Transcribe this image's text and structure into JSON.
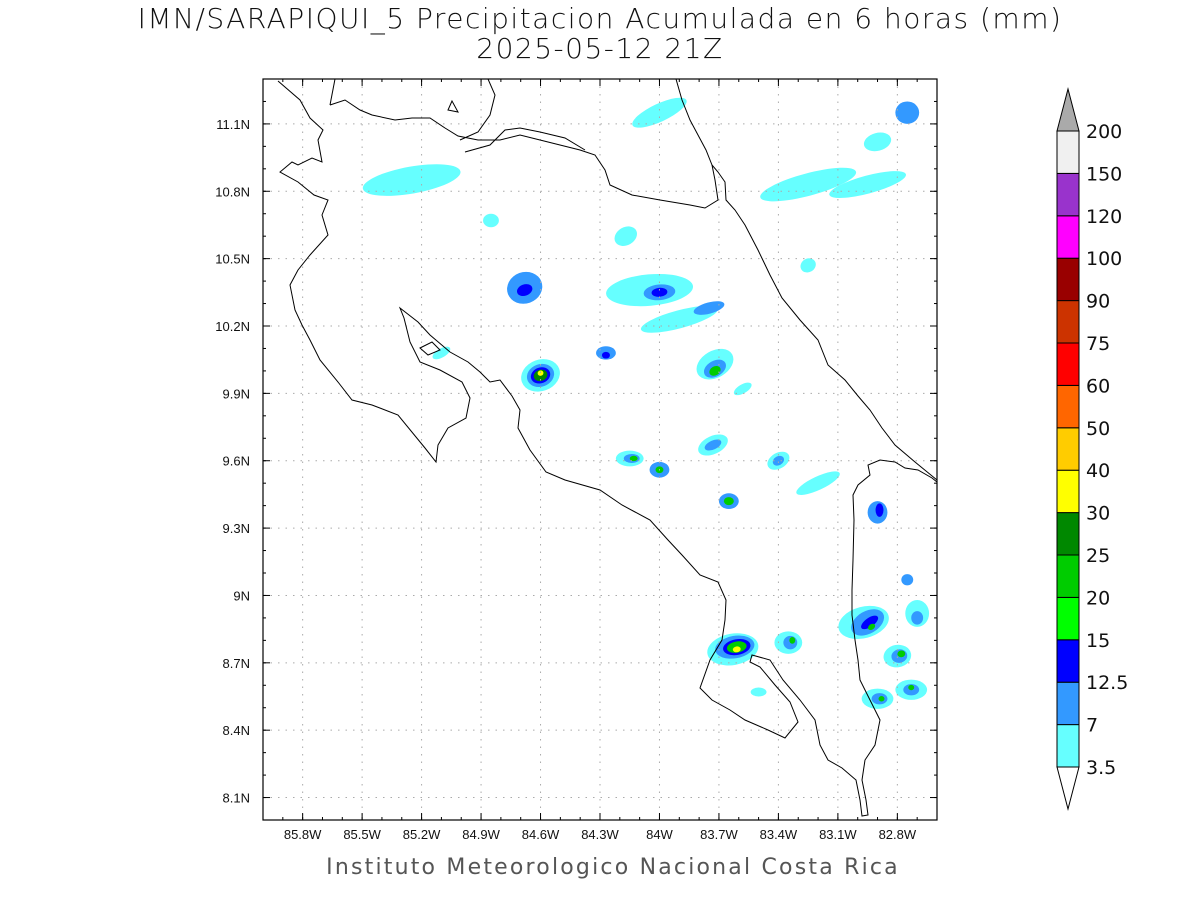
{
  "title_line1": "IMN/SARAPIQUI_5 Precipitacion Acumulada en 6 horas (mm)",
  "title_line2": "2025-05-12 21Z",
  "credit": "Instituto Meteorologico Nacional Costa Rica",
  "map": {
    "lon_min": -86.0,
    "lon_max": -82.6,
    "lat_min": 8.0,
    "lat_max": 11.3,
    "lon_ticks": [
      {
        "value": -85.8,
        "label": "85.8W"
      },
      {
        "value": -85.5,
        "label": "85.5W"
      },
      {
        "value": -85.2,
        "label": "85.2W"
      },
      {
        "value": -84.9,
        "label": "84.9W"
      },
      {
        "value": -84.6,
        "label": "84.6W"
      },
      {
        "value": -84.3,
        "label": "84.3W"
      },
      {
        "value": -84.0,
        "label": "84W"
      },
      {
        "value": -83.7,
        "label": "83.7W"
      },
      {
        "value": -83.4,
        "label": "83.4W"
      },
      {
        "value": -83.1,
        "label": "83.1W"
      },
      {
        "value": -82.8,
        "label": "82.8W"
      }
    ],
    "lat_ticks": [
      {
        "value": 8.1,
        "label": "8.1N"
      },
      {
        "value": 8.4,
        "label": "8.4N"
      },
      {
        "value": 8.7,
        "label": "8.7N"
      },
      {
        "value": 9.0,
        "label": "9N"
      },
      {
        "value": 9.3,
        "label": "9.3N"
      },
      {
        "value": 9.6,
        "label": "9.6N"
      },
      {
        "value": 9.9,
        "label": "9.9N"
      },
      {
        "value": 10.2,
        "label": "10.2N"
      },
      {
        "value": 10.5,
        "label": "10.5N"
      },
      {
        "value": 10.8,
        "label": "10.8N"
      },
      {
        "value": 11.1,
        "label": "11.1N"
      }
    ]
  },
  "colorbar": {
    "levels": [
      "3.5",
      "7",
      "12.5",
      "15",
      "20",
      "25",
      "30",
      "40",
      "50",
      "60",
      "75",
      "90",
      "100",
      "120",
      "150",
      "200"
    ],
    "colors": [
      "#ffffff",
      "#66ffff",
      "#3399ff",
      "#0000ff",
      "#00ff00",
      "#00cc00",
      "#008800",
      "#ffff00",
      "#ffcc00",
      "#ff6600",
      "#ff0000",
      "#cc3300",
      "#990000",
      "#ff00ff",
      "#9933cc",
      "#f0f0f0",
      "#aaaaaa"
    ]
  },
  "precip_cells": [
    {
      "lon": -85.25,
      "lat": 10.85,
      "rx": 0.25,
      "ry": 0.06,
      "rot": -10,
      "level": 1
    },
    {
      "lon": -84.85,
      "lat": 10.67,
      "rx": 0.04,
      "ry": 0.03,
      "rot": 0,
      "level": 1
    },
    {
      "lon": -84.0,
      "lat": 11.15,
      "rx": 0.15,
      "ry": 0.04,
      "rot": -25,
      "level": 1
    },
    {
      "lon": -83.25,
      "lat": 10.83,
      "rx": 0.25,
      "ry": 0.05,
      "rot": -15,
      "level": 1
    },
    {
      "lon": -82.95,
      "lat": 10.83,
      "rx": 0.2,
      "ry": 0.04,
      "rot": -15,
      "level": 1
    },
    {
      "lon": -82.75,
      "lat": 11.15,
      "rx": 0.06,
      "ry": 0.05,
      "rot": 0,
      "level": 2
    },
    {
      "lon": -82.9,
      "lat": 11.02,
      "rx": 0.07,
      "ry": 0.04,
      "rot": -15,
      "level": 1
    },
    {
      "lon": -84.17,
      "lat": 10.6,
      "rx": 0.06,
      "ry": 0.04,
      "rot": -30,
      "level": 1
    },
    {
      "lon": -83.25,
      "lat": 10.47,
      "rx": 0.04,
      "ry": 0.03,
      "rot": -30,
      "level": 1
    },
    {
      "lon": -84.68,
      "lat": 10.37,
      "rx": 0.09,
      "ry": 0.07,
      "rot": -20,
      "level": 2
    },
    {
      "lon": -84.68,
      "lat": 10.36,
      "rx": 0.04,
      "ry": 0.025,
      "rot": -20,
      "level": 3
    },
    {
      "lon": -84.05,
      "lat": 10.36,
      "rx": 0.22,
      "ry": 0.07,
      "rot": -5,
      "level": 1
    },
    {
      "lon": -84.0,
      "lat": 10.35,
      "rx": 0.08,
      "ry": 0.035,
      "rot": -5,
      "level": 2
    },
    {
      "lon": -84.0,
      "lat": 10.35,
      "rx": 0.04,
      "ry": 0.02,
      "rot": -5,
      "level": 3
    },
    {
      "lon": -83.9,
      "lat": 10.23,
      "rx": 0.2,
      "ry": 0.04,
      "rot": -15,
      "level": 1
    },
    {
      "lon": -83.75,
      "lat": 10.28,
      "rx": 0.08,
      "ry": 0.025,
      "rot": -15,
      "level": 2
    },
    {
      "lon": -84.27,
      "lat": 10.08,
      "rx": 0.05,
      "ry": 0.03,
      "rot": 0,
      "level": 2
    },
    {
      "lon": -84.27,
      "lat": 10.07,
      "rx": 0.02,
      "ry": 0.015,
      "rot": 0,
      "level": 3
    },
    {
      "lon": -84.6,
      "lat": 9.98,
      "rx": 0.1,
      "ry": 0.07,
      "rot": -20,
      "level": 1
    },
    {
      "lon": -84.6,
      "lat": 9.98,
      "rx": 0.07,
      "ry": 0.05,
      "rot": -20,
      "level": 2
    },
    {
      "lon": -84.6,
      "lat": 9.98,
      "rx": 0.05,
      "ry": 0.035,
      "rot": -20,
      "level": 3
    },
    {
      "lon": -84.6,
      "lat": 9.98,
      "rx": 0.035,
      "ry": 0.025,
      "rot": -20,
      "level": 6
    },
    {
      "lon": -84.6,
      "lat": 9.99,
      "rx": 0.015,
      "ry": 0.012,
      "rot": -20,
      "level": 7
    },
    {
      "lon": -83.72,
      "lat": 10.03,
      "rx": 0.1,
      "ry": 0.06,
      "rot": -30,
      "level": 1
    },
    {
      "lon": -83.72,
      "lat": 10.01,
      "rx": 0.06,
      "ry": 0.035,
      "rot": -30,
      "level": 2
    },
    {
      "lon": -83.72,
      "lat": 10.0,
      "rx": 0.03,
      "ry": 0.02,
      "rot": -30,
      "level": 5
    },
    {
      "lon": -83.58,
      "lat": 9.92,
      "rx": 0.05,
      "ry": 0.02,
      "rot": -30,
      "level": 1
    },
    {
      "lon": -85.1,
      "lat": 10.08,
      "rx": 0.05,
      "ry": 0.02,
      "rot": -30,
      "level": 1
    },
    {
      "lon": -83.73,
      "lat": 9.67,
      "rx": 0.08,
      "ry": 0.04,
      "rot": -25,
      "level": 1
    },
    {
      "lon": -83.73,
      "lat": 9.67,
      "rx": 0.045,
      "ry": 0.02,
      "rot": -25,
      "level": 2
    },
    {
      "lon": -84.15,
      "lat": 9.61,
      "rx": 0.07,
      "ry": 0.035,
      "rot": 0,
      "level": 1
    },
    {
      "lon": -84.14,
      "lat": 9.61,
      "rx": 0.04,
      "ry": 0.02,
      "rot": 0,
      "level": 2
    },
    {
      "lon": -84.13,
      "lat": 9.61,
      "rx": 0.02,
      "ry": 0.012,
      "rot": 0,
      "level": 5
    },
    {
      "lon": -84.0,
      "lat": 9.56,
      "rx": 0.05,
      "ry": 0.035,
      "rot": 0,
      "level": 2
    },
    {
      "lon": -84.0,
      "lat": 9.56,
      "rx": 0.02,
      "ry": 0.015,
      "rot": 0,
      "level": 5
    },
    {
      "lon": -83.4,
      "lat": 9.6,
      "rx": 0.06,
      "ry": 0.035,
      "rot": -30,
      "level": 1
    },
    {
      "lon": -83.4,
      "lat": 9.6,
      "rx": 0.03,
      "ry": 0.02,
      "rot": -30,
      "level": 2
    },
    {
      "lon": -83.65,
      "lat": 9.42,
      "rx": 0.05,
      "ry": 0.035,
      "rot": 0,
      "level": 2
    },
    {
      "lon": -83.65,
      "lat": 9.42,
      "rx": 0.025,
      "ry": 0.018,
      "rot": 0,
      "level": 5
    },
    {
      "lon": -83.2,
      "lat": 9.5,
      "rx": 0.12,
      "ry": 0.03,
      "rot": -25,
      "level": 1
    },
    {
      "lon": -82.9,
      "lat": 9.37,
      "rx": 0.05,
      "ry": 0.05,
      "rot": 0,
      "level": 2
    },
    {
      "lon": -82.89,
      "lat": 9.38,
      "rx": 0.02,
      "ry": 0.03,
      "rot": 0,
      "level": 3
    },
    {
      "lon": -82.75,
      "lat": 9.07,
      "rx": 0.03,
      "ry": 0.025,
      "rot": 0,
      "level": 2
    },
    {
      "lon": -82.7,
      "lat": 8.92,
      "rx": 0.06,
      "ry": 0.06,
      "rot": 0,
      "level": 1
    },
    {
      "lon": -82.7,
      "lat": 8.9,
      "rx": 0.03,
      "ry": 0.03,
      "rot": 0,
      "level": 2
    },
    {
      "lon": -82.97,
      "lat": 8.88,
      "rx": 0.13,
      "ry": 0.07,
      "rot": -15,
      "level": 1
    },
    {
      "lon": -82.95,
      "lat": 8.88,
      "rx": 0.09,
      "ry": 0.05,
      "rot": -30,
      "level": 2
    },
    {
      "lon": -82.94,
      "lat": 8.88,
      "rx": 0.05,
      "ry": 0.02,
      "rot": -35,
      "level": 3
    },
    {
      "lon": -82.93,
      "lat": 8.86,
      "rx": 0.02,
      "ry": 0.012,
      "rot": -35,
      "level": 5
    },
    {
      "lon": -82.8,
      "lat": 8.73,
      "rx": 0.07,
      "ry": 0.05,
      "rot": -10,
      "level": 1
    },
    {
      "lon": -82.79,
      "lat": 8.73,
      "rx": 0.04,
      "ry": 0.03,
      "rot": -10,
      "level": 2
    },
    {
      "lon": -82.78,
      "lat": 8.74,
      "rx": 0.02,
      "ry": 0.015,
      "rot": -10,
      "level": 5
    },
    {
      "lon": -83.35,
      "lat": 8.79,
      "rx": 0.07,
      "ry": 0.05,
      "rot": 0,
      "level": 1
    },
    {
      "lon": -83.34,
      "lat": 8.79,
      "rx": 0.035,
      "ry": 0.03,
      "rot": 0,
      "level": 2
    },
    {
      "lon": -83.33,
      "lat": 8.8,
      "rx": 0.015,
      "ry": 0.015,
      "rot": 0,
      "level": 5
    },
    {
      "lon": -83.63,
      "lat": 8.76,
      "rx": 0.13,
      "ry": 0.07,
      "rot": -10,
      "level": 1
    },
    {
      "lon": -83.62,
      "lat": 8.77,
      "rx": 0.1,
      "ry": 0.05,
      "rot": -10,
      "level": 2
    },
    {
      "lon": -83.61,
      "lat": 8.77,
      "rx": 0.07,
      "ry": 0.035,
      "rot": -10,
      "level": 3
    },
    {
      "lon": -83.61,
      "lat": 8.77,
      "rx": 0.05,
      "ry": 0.025,
      "rot": -10,
      "level": 5
    },
    {
      "lon": -83.61,
      "lat": 8.76,
      "rx": 0.02,
      "ry": 0.013,
      "rot": -10,
      "level": 7
    },
    {
      "lon": -82.9,
      "lat": 8.54,
      "rx": 0.08,
      "ry": 0.045,
      "rot": 0,
      "level": 1
    },
    {
      "lon": -82.89,
      "lat": 8.54,
      "rx": 0.04,
      "ry": 0.025,
      "rot": 0,
      "level": 2
    },
    {
      "lon": -82.88,
      "lat": 8.54,
      "rx": 0.015,
      "ry": 0.012,
      "rot": 0,
      "level": 5
    },
    {
      "lon": -82.73,
      "lat": 8.58,
      "rx": 0.08,
      "ry": 0.045,
      "rot": 0,
      "level": 1
    },
    {
      "lon": -82.73,
      "lat": 8.58,
      "rx": 0.04,
      "ry": 0.025,
      "rot": 0,
      "level": 2
    },
    {
      "lon": -82.73,
      "lat": 8.59,
      "rx": 0.015,
      "ry": 0.012,
      "rot": 0,
      "level": 5
    },
    {
      "lon": -83.5,
      "lat": 8.57,
      "rx": 0.04,
      "ry": 0.02,
      "rot": 0,
      "level": 1
    }
  ]
}
